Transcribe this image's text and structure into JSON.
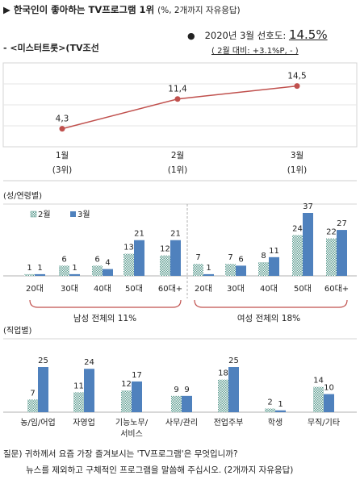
{
  "header": {
    "title": "▶ 한국인이 좋아하는 TV프로그램 1위",
    "title_sub": "(%, 2개까지 자유응답)",
    "program": "- <미스터트롯>(TV조선",
    "rate_label": "2020년 3월 선호도:",
    "rate_value": "14.5%",
    "rate_change": "( 2월 대비: +3.1%P,  -   )"
  },
  "colors": {
    "line": "#c0504d",
    "series_feb": "#5b9b8f",
    "series_mar": "#4f81bd",
    "arc": "#c0504d"
  },
  "chart_data": [
    {
      "type": "line",
      "categories": [
        "1월",
        "2월",
        "3월"
      ],
      "category_sub": [
        "(3위)",
        "(1위)",
        "(1위)"
      ],
      "values": [
        4.3,
        11.4,
        14.5
      ],
      "value_labels": [
        "4,3",
        "11,4",
        "14,5"
      ],
      "grid": true
    },
    {
      "type": "bar",
      "section_label": "(성/연령별)",
      "legend": [
        "2월",
        "3월"
      ],
      "legend_position": "top-left",
      "categories": [
        "20대",
        "30대",
        "40대",
        "50대",
        "60대+",
        "20대",
        "30대",
        "40대",
        "50대",
        "60대+"
      ],
      "series": [
        {
          "name": "2월",
          "values": [
            1,
            6,
            6,
            13,
            12,
            7,
            7,
            8,
            24,
            22
          ]
        },
        {
          "name": "3월",
          "values": [
            1,
            1,
            4,
            21,
            21,
            1,
            6,
            11,
            37,
            27
          ]
        }
      ],
      "groups": [
        "남성 전체의 11%",
        "여성 전체의 18%"
      ]
    },
    {
      "type": "bar",
      "section_label": "(직업별)",
      "categories": [
        "농/임/어업",
        "자영업",
        "기능노무/\n서비스",
        "사무/관리",
        "전업주부",
        "학생",
        "무직/기타"
      ],
      "series": [
        {
          "name": "2월",
          "values": [
            7,
            11,
            12,
            9,
            18,
            2,
            14
          ]
        },
        {
          "name": "3월",
          "values": [
            25,
            24,
            17,
            9,
            25,
            1,
            10
          ]
        }
      ]
    }
  ],
  "footer": {
    "line1": "질문) 귀하께서 요즘 가장 즐겨보시는 'TV프로그램'은 무엇입니까?",
    "line2": "뉴스를 제외하고 구체적인 프로그램을 말씀해 주십시오. (2개까지 자유응답)"
  }
}
